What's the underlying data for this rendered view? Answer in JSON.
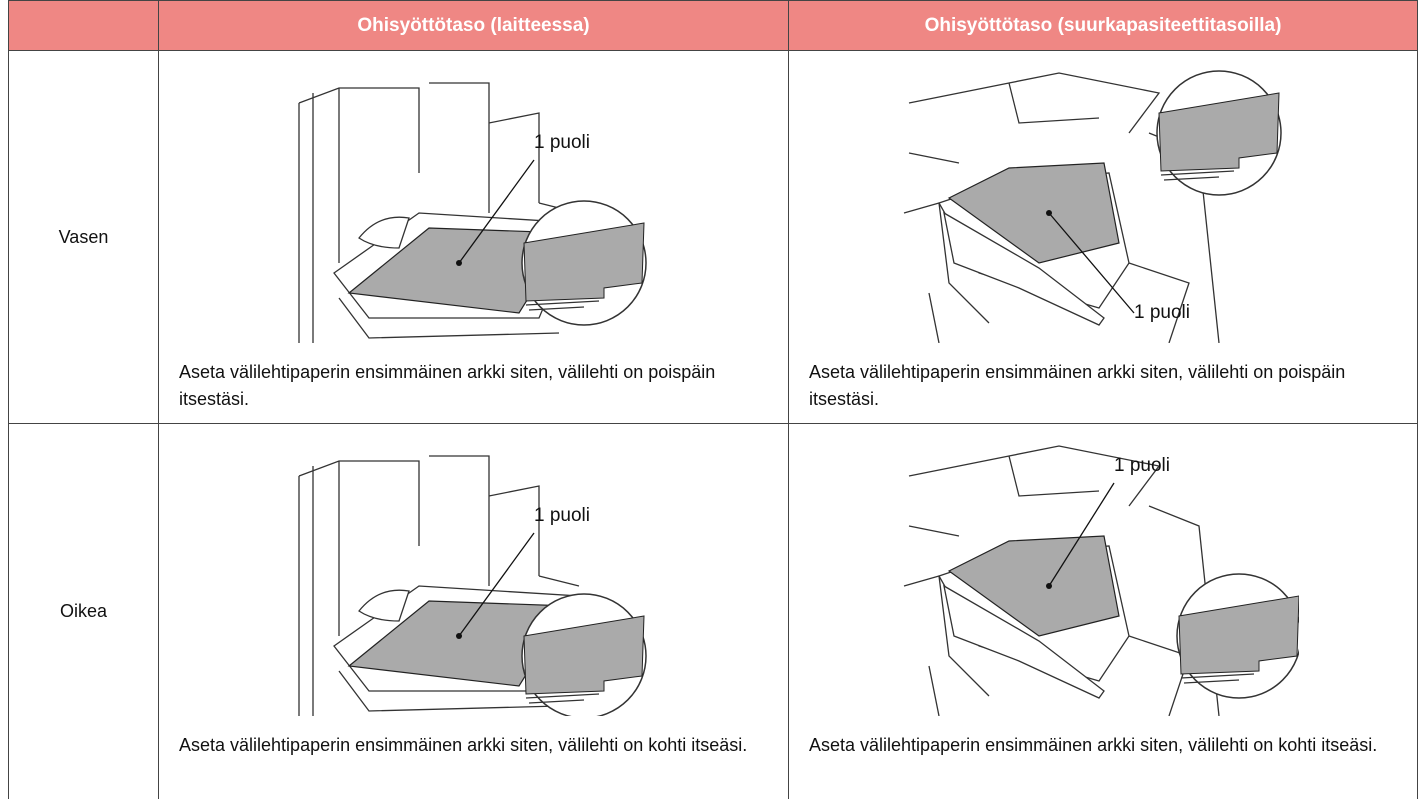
{
  "table": {
    "headers": [
      "Ohisyöttötaso (laitteessa)",
      "Ohisyöttötaso (suurkapasiteettitasoilla)"
    ],
    "rows": [
      {
        "label": "Vasen",
        "cells": [
          {
            "callout": "1 puoli",
            "caption": "Aseta välilehtipaperin ensimmäinen arkki siten, välilehti on poispäin itsestäsi."
          },
          {
            "callout": "1 puoli",
            "caption": "Aseta välilehtipaperin ensimmäinen arkki siten, välilehti on poispäin itsestäsi."
          }
        ]
      },
      {
        "label": "Oikea",
        "cells": [
          {
            "callout": "1 puoli",
            "caption": "Aseta välilehtipaperin ensimmäinen arkki siten, välilehti on kohti itseäsi."
          },
          {
            "callout": "1 puoli",
            "caption": "Aseta välilehtipaperin ensimmäinen arkki siten, välilehti on kohti itseäsi."
          }
        ]
      }
    ]
  }
}
